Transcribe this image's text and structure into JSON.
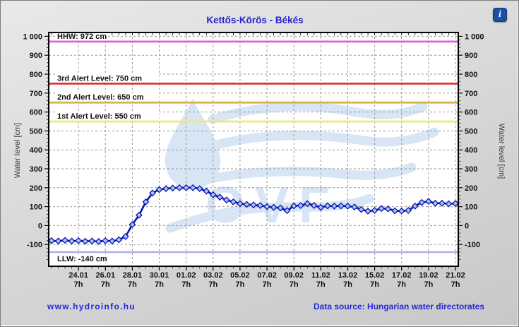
{
  "header": {
    "title": "Kettős-Körös - Békés",
    "info_icon": "i"
  },
  "chart_data": {
    "type": "line",
    "title": "Kettős-Körös - Békés",
    "xlabel": "",
    "ylabel": "Water level [cm]",
    "ylim": [
      -215,
      1020
    ],
    "grid": true,
    "watermark": "OVF",
    "y_ticks": [
      {
        "value": 1000,
        "label": "1 000"
      },
      {
        "value": 900,
        "label": "900"
      },
      {
        "value": 800,
        "label": "800"
      },
      {
        "value": 700,
        "label": "700"
      },
      {
        "value": 600,
        "label": "600"
      },
      {
        "value": 500,
        "label": "500"
      },
      {
        "value": 400,
        "label": "400"
      },
      {
        "value": 300,
        "label": "300"
      },
      {
        "value": 200,
        "label": "200"
      },
      {
        "value": 100,
        "label": "100"
      },
      {
        "value": 0,
        "label": "0"
      },
      {
        "value": -100,
        "label": "-100"
      }
    ],
    "x_ticks": [
      {
        "index": 4,
        "date": "24.01",
        "hour": "7h"
      },
      {
        "index": 8,
        "date": "26.01",
        "hour": "7h"
      },
      {
        "index": 12,
        "date": "28.01",
        "hour": "7h"
      },
      {
        "index": 16,
        "date": "30.01",
        "hour": "7h"
      },
      {
        "index": 20,
        "date": "01.02",
        "hour": "7h"
      },
      {
        "index": 24,
        "date": "03.02",
        "hour": "7h"
      },
      {
        "index": 28,
        "date": "05.02",
        "hour": "7h"
      },
      {
        "index": 32,
        "date": "07.02",
        "hour": "7h"
      },
      {
        "index": 36,
        "date": "09.02",
        "hour": "7h"
      },
      {
        "index": 40,
        "date": "11.02",
        "hour": "7h"
      },
      {
        "index": 44,
        "date": "13.02",
        "hour": "7h"
      },
      {
        "index": 48,
        "date": "15.02",
        "hour": "7h"
      },
      {
        "index": 52,
        "date": "17.02",
        "hour": "7h"
      },
      {
        "index": 56,
        "date": "19.02",
        "hour": "7h"
      },
      {
        "index": 60,
        "date": "21.02",
        "hour": "7h"
      }
    ],
    "reference_lines": [
      {
        "id": "hhw",
        "label": "HHW: 972 cm",
        "value": 972,
        "color": "#e05ce0",
        "label_position": "above"
      },
      {
        "id": "alert3",
        "label": "3rd Alert Level: 750 cm",
        "value": 750,
        "color": "#e03131",
        "label_position": "above"
      },
      {
        "id": "alert2",
        "label": "2nd Alert Level: 650 cm",
        "value": 650,
        "color": "#d9b44a",
        "label_position": "above"
      },
      {
        "id": "alert1",
        "label": "1st Alert Level: 550 cm",
        "value": 550,
        "color": "#eeea70",
        "label_position": "above"
      },
      {
        "id": "llw",
        "label": "LLW: -140 cm",
        "value": -140,
        "color": "#b2b2e8",
        "label_position": "below"
      }
    ],
    "series": [
      {
        "name": "water-level",
        "color": "#0a14b8",
        "marker_fill": "#a9c7e7",
        "start": "22.01 7h",
        "interval_hours": 12,
        "values": [
          -80,
          -82,
          -78,
          -82,
          -80,
          -83,
          -82,
          -84,
          -80,
          -82,
          -75,
          -58,
          5,
          55,
          125,
          172,
          190,
          195,
          198,
          200,
          200,
          200,
          195,
          182,
          163,
          150,
          135,
          125,
          116,
          112,
          109,
          106,
          100,
          96,
          93,
          79,
          104,
          106,
          116,
          106,
          96,
          104,
          103,
          104,
          103,
          98,
          85,
          76,
          80,
          90,
          88,
          78,
          77,
          80,
          103,
          122,
          128,
          118,
          118,
          115,
          117
        ]
      }
    ]
  },
  "footer": {
    "site": "www.hydroinfo.hu",
    "source": "Data source: Hungarian water directorates"
  },
  "colors": {
    "title_text": "#2222cc",
    "link_text": "#2626d9",
    "series_line": "#0a14b8",
    "marker_fill": "#a9c7e7",
    "gridline": "#999999",
    "watermark": "#d8e5f4",
    "info_icon_bg": "#1c4fa3"
  }
}
